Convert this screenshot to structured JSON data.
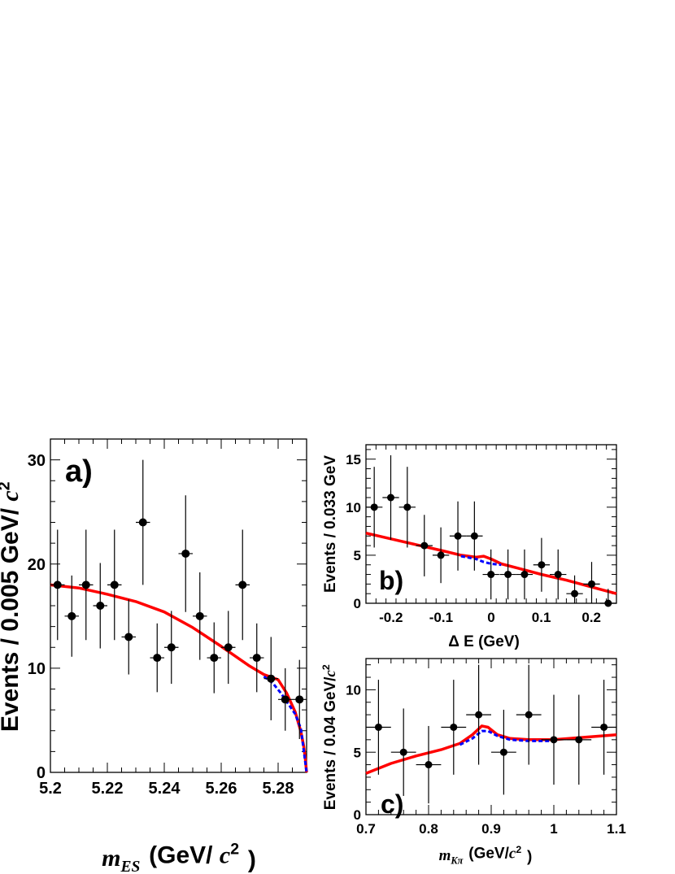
{
  "chart_data": [
    {
      "type": "scatter",
      "panel_label": "a)",
      "xlabel": "m_ES (GeV/ c^2 )",
      "ylabel": "Events / 0.005 GeV/ c^2",
      "xlim": [
        5.2,
        5.29
      ],
      "ylim": [
        0,
        32
      ],
      "xticks": [
        "5.2",
        "5.22",
        "5.24",
        "5.26",
        "5.28"
      ],
      "yticks": [
        "0",
        "10",
        "20",
        "30"
      ],
      "x": [
        5.2025,
        5.2075,
        5.2125,
        5.2175,
        5.2225,
        5.2275,
        5.2325,
        5.2375,
        5.2425,
        5.2475,
        5.2525,
        5.2575,
        5.2625,
        5.2675,
        5.2725,
        5.2775,
        5.2825,
        5.2875
      ],
      "y": [
        18,
        15,
        18,
        16,
        18,
        13,
        24,
        11,
        12,
        21,
        15,
        11,
        12,
        18,
        11,
        9,
        7,
        7
      ],
      "yerr": [
        5.3,
        3.9,
        5.3,
        4.1,
        5.3,
        3.6,
        6.0,
        3.3,
        3.5,
        5.6,
        4.2,
        3.4,
        3.5,
        5.3,
        3.3,
        4.0,
        3.0,
        3.8
      ],
      "xerr": 0.0025,
      "curves": [
        {
          "color": "#ff0000",
          "style": "solid",
          "x": [
            5.2,
            5.21,
            5.22,
            5.23,
            5.24,
            5.25,
            5.26,
            5.27,
            5.275,
            5.28,
            5.283,
            5.286,
            5.288,
            5.289,
            5.2895,
            5.29
          ],
          "y": [
            18.0,
            17.7,
            17.1,
            16.4,
            15.4,
            13.9,
            12.1,
            10.2,
            9.4,
            8.9,
            7.6,
            5.8,
            3.9,
            2.5,
            1.4,
            0
          ]
        },
        {
          "color": "#0000ff",
          "style": "dashed",
          "x": [
            5.275,
            5.278,
            5.281,
            5.284,
            5.286,
            5.288,
            5.29
          ],
          "y": [
            9.2,
            8.6,
            7.6,
            6.4,
            5.6,
            4.2,
            0
          ]
        }
      ]
    },
    {
      "type": "scatter",
      "panel_label": "b)",
      "xlabel": "Δ E (GeV)",
      "ylabel": "Events / 0.033 GeV",
      "xlim": [
        -0.25,
        0.25
      ],
      "ylim": [
        0,
        16.5
      ],
      "xticks": [
        "-0.2",
        "-0.1",
        "0",
        "0.1",
        "0.2"
      ],
      "yticks": [
        "0",
        "5",
        "10",
        "15"
      ],
      "x": [
        -0.2335,
        -0.2005,
        -0.1675,
        -0.1335,
        -0.1005,
        -0.0665,
        -0.0335,
        -0.0005,
        0.0335,
        0.0665,
        0.1005,
        0.1335,
        0.1665,
        0.2005,
        0.2335
      ],
      "y": [
        10,
        11,
        10,
        6,
        5,
        7,
        7,
        3,
        3,
        3,
        4,
        3,
        1,
        2,
        0
      ],
      "yerr": [
        4.2,
        4.4,
        4.2,
        3.2,
        2.9,
        3.6,
        3.6,
        2.6,
        2.6,
        2.6,
        2.8,
        2.6,
        1.9,
        2.3,
        1.5
      ],
      "xerr": 0.0165,
      "curves": [
        {
          "color": "#ff0000",
          "style": "solid",
          "x": [
            -0.25,
            -0.2,
            -0.15,
            -0.1,
            -0.06,
            -0.03,
            -0.015,
            0.0,
            0.02,
            0.05,
            0.1,
            0.15,
            0.2,
            0.25
          ],
          "y": [
            7.3,
            6.7,
            6.1,
            5.5,
            5.0,
            4.8,
            4.9,
            4.6,
            4.1,
            3.7,
            3.0,
            2.4,
            1.7,
            1.0
          ]
        },
        {
          "color": "#0000ff",
          "style": "dashed",
          "x": [
            -0.06,
            -0.03,
            -0.015,
            0.0,
            0.02
          ],
          "y": [
            4.9,
            4.6,
            4.3,
            4.1,
            4.0
          ]
        }
      ]
    },
    {
      "type": "scatter",
      "panel_label": "c)",
      "xlabel": "m_Kπ (GeV/c^2 )",
      "ylabel": "Events / 0.04 GeV/c^2",
      "xlim": [
        0.7,
        1.1
      ],
      "ylim": [
        0,
        12.5
      ],
      "xticks": [
        "0.7",
        "0.8",
        "0.9",
        "1",
        "1.1"
      ],
      "yticks": [
        "0",
        "5",
        "10"
      ],
      "x": [
        0.72,
        0.76,
        0.8,
        0.84,
        0.88,
        0.92,
        0.96,
        1.0,
        1.04,
        1.08
      ],
      "y": [
        7,
        5,
        4,
        7,
        8,
        5,
        8,
        6,
        6,
        7
      ],
      "yerr": [
        3.8,
        3.5,
        3.1,
        3.8,
        4.0,
        3.4,
        4.0,
        3.6,
        3.6,
        3.8
      ],
      "xerr": 0.02,
      "curves": [
        {
          "color": "#ff0000",
          "style": "solid",
          "x": [
            0.7,
            0.74,
            0.78,
            0.82,
            0.85,
            0.87,
            0.885,
            0.895,
            0.91,
            0.93,
            0.96,
            1.0,
            1.05,
            1.1
          ],
          "y": [
            3.3,
            4.1,
            4.7,
            5.2,
            5.7,
            6.4,
            7.1,
            7.0,
            6.4,
            6.1,
            6.0,
            6.0,
            6.2,
            6.4
          ]
        },
        {
          "color": "#0000ff",
          "style": "dashed",
          "x": [
            0.85,
            0.87,
            0.885,
            0.895,
            0.91,
            0.93,
            0.96,
            1.0
          ],
          "y": [
            5.6,
            6.1,
            6.7,
            6.7,
            6.3,
            6.0,
            5.9,
            5.9
          ]
        }
      ]
    }
  ]
}
